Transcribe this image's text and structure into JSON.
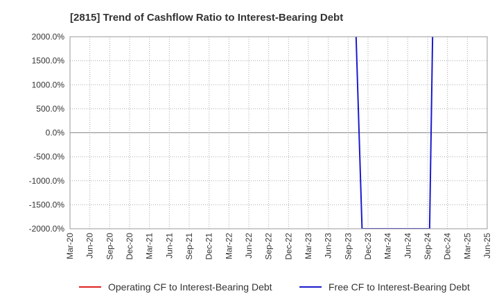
{
  "chart_data": {
    "type": "line",
    "title": "[2815]  Trend of Cashflow Ratio to Interest-Bearing Debt",
    "xlabel": "",
    "ylabel": "",
    "x_ticks": [
      "Mar-20",
      "Jun-20",
      "Sep-20",
      "Dec-20",
      "Mar-21",
      "Jun-21",
      "Sep-21",
      "Dec-21",
      "Mar-22",
      "Jun-22",
      "Sep-22",
      "Dec-22",
      "Mar-23",
      "Jun-23",
      "Sep-23",
      "Dec-23",
      "Mar-24",
      "Jun-24",
      "Sep-24",
      "Dec-24",
      "Mar-25",
      "Jun-25"
    ],
    "y_ticks": [
      2000,
      1500,
      1000,
      500,
      0,
      -500,
      -1000,
      -1500,
      -2000
    ],
    "y_tick_labels": [
      "2000.0%",
      "1500.0%",
      "1000.0%",
      "500.0%",
      "0.0%",
      "-500.0%",
      "-1000.0%",
      "-1500.0%",
      "-2000.0%"
    ],
    "ylim": [
      -2000,
      2000
    ],
    "grid": true,
    "legend_position": "bottom",
    "series": [
      {
        "name": "Operating CF to Interest-Bearing Debt",
        "color": "#e02020",
        "points": []
      },
      {
        "name": "Free CF to Interest-Bearing Debt",
        "color": "#1a1acc",
        "points": [
          {
            "x": 14.4,
            "y": 2000
          },
          {
            "x": 14.7,
            "y": -2000
          },
          {
            "x": 18.1,
            "y": -2000
          },
          {
            "x": 18.25,
            "y": 2000
          }
        ]
      }
    ]
  }
}
